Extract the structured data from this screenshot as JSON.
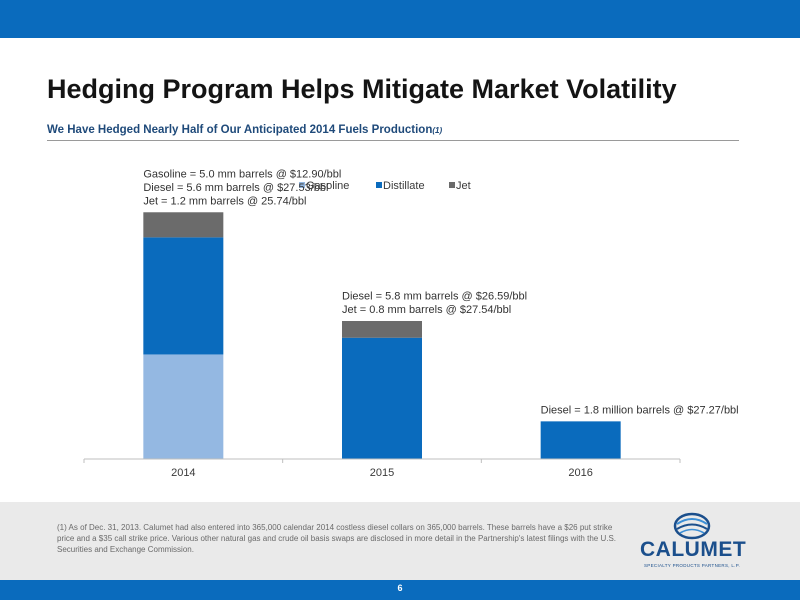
{
  "slide": {
    "title": "Hedging Program Helps Mitigate Market Volatility",
    "subtitle": "We Have Hedged Nearly Half of Our Anticipated 2014 Fuels Production",
    "subtitle_note": "(1)",
    "footnote": "(1)  As of Dec. 31, 2013.  Calumet had also entered into 365,000 calendar 2014 costless diesel collars on 365,000 barrels.  These barrels have a $26 put strike price and a $35 call strike price.  Various other natural gas and crude oil basis swaps are disclosed in more detail in the Partnership's latest filings with the U.S. Securities and Exchange Commission.",
    "page_number": "6",
    "logo_text": "CALUMET",
    "logo_tagline": "SPECIALTY PRODUCTS PARTNERS, L.P.",
    "band_color": "#0a6bbd"
  },
  "chart_data": {
    "type": "bar",
    "stacked": true,
    "categories": [
      "2014",
      "2015",
      "2016"
    ],
    "series": [
      {
        "name": "Gasoline",
        "values": [
          5.0,
          0,
          0
        ],
        "color": "#94b8e2"
      },
      {
        "name": "Distillate",
        "values": [
          5.6,
          5.8,
          1.8
        ],
        "color": "#0a6bbd"
      },
      {
        "name": "Jet",
        "values": [
          1.2,
          0.8,
          0
        ],
        "color": "#6b6b6b"
      }
    ],
    "ylim": [
      0,
      22
    ],
    "grid": false,
    "legend_position": "top",
    "annotations": [
      {
        "category": "2014",
        "lines": [
          "Gasoline = 5.0 mm barrels @ $12.90/bbl",
          "Diesel = 5.6 mm barrels @ $27.53/bbl",
          "Jet = 1.2 mm barrels @ 25.74/bbl"
        ]
      },
      {
        "category": "2015",
        "lines": [
          "Diesel = 5.8 mm barrels @ $26.59/bbl",
          "Jet = 0.8 mm barrels @ $27.54/bbl"
        ]
      },
      {
        "category": "2016",
        "lines": [
          "Diesel = 1.8 million barrels @ $27.27/bbl"
        ]
      }
    ]
  }
}
